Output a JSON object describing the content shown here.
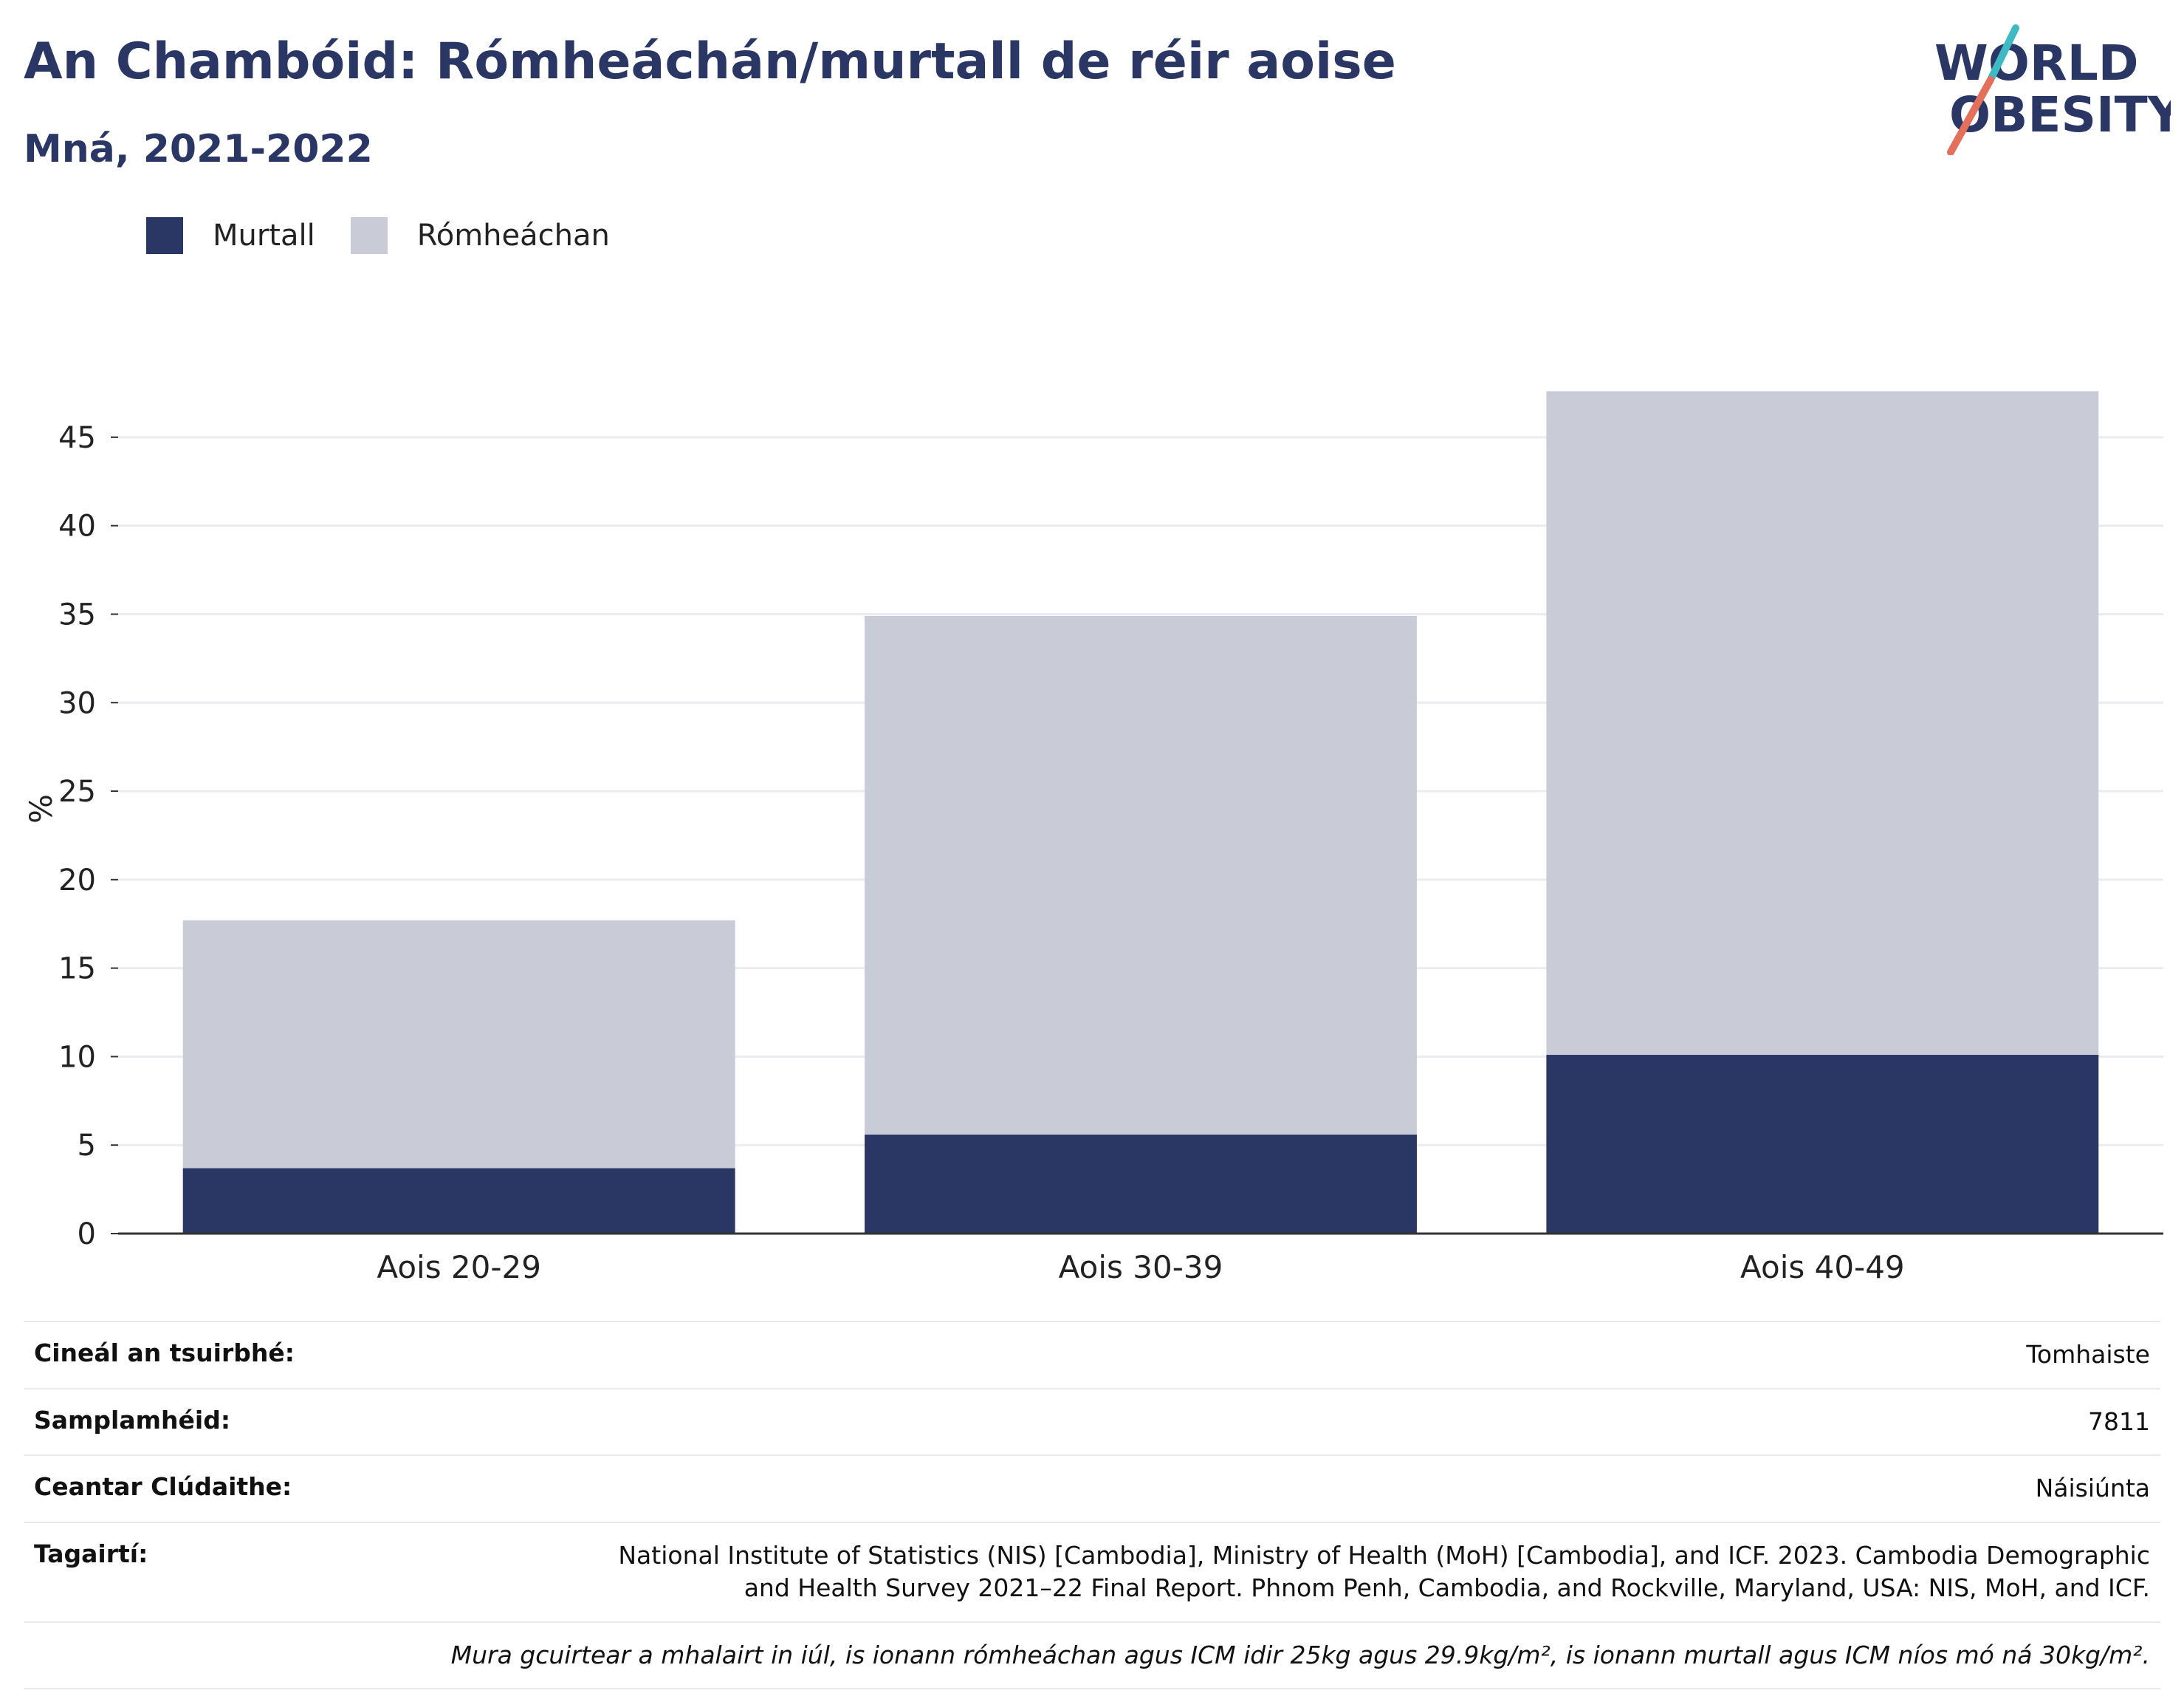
{
  "header": {
    "title": "An Chambóid: Rómheáchán/murtall de réir aoise",
    "subtitle": "Mná, 2021-2022"
  },
  "logo": {
    "line1": "WORLD",
    "line2": "OBESITY"
  },
  "legend": [
    {
      "label": "Murtall",
      "color": "#2a3664"
    },
    {
      "label": "Rómheáchan",
      "color": "#c9ccd7"
    }
  ],
  "chart_data": {
    "type": "bar",
    "stacked": true,
    "categories": [
      "Aois 20-29",
      "Aois 30-39",
      "Aois 40-49"
    ],
    "series": [
      {
        "name": "Murtall",
        "values": [
          3.7,
          5.6,
          10.1
        ],
        "color": "#2a3664"
      },
      {
        "name": "Rómheáchan",
        "values": [
          14.0,
          29.3,
          37.5
        ],
        "color": "#c9ccd7"
      }
    ],
    "ylabel": "%",
    "xlabel": "",
    "ylim": [
      0,
      48
    ],
    "yticks": [
      0,
      5,
      10,
      15,
      20,
      25,
      30,
      35,
      40,
      45
    ],
    "grid": true,
    "legend_position": "top-left"
  },
  "info": {
    "rows": [
      {
        "label": "Cineál an tsuirbhé:",
        "value": "Tomhaiste"
      },
      {
        "label": "Samplamhéid:",
        "value": "7811"
      },
      {
        "label": "Ceantar Clúdaithe:",
        "value": "Náisiúnta"
      },
      {
        "label": "Tagairtí:",
        "value": "National Institute of Statistics (NIS) [Cambodia], Ministry of Health (MoH) [Cambodia], and ICF. 2023. Cambodia Demographic and Health Survey 2021–22 Final Report. Phnom Penh, Cambodia, and Rockville, Maryland, USA: NIS, MoH, and ICF."
      }
    ],
    "note": "Mura gcuirtear a mhalairt in iúl, is ionann rómheáchan agus ICM idir 25kg agus 29.9kg/m², is ionann murtall agus ICM níos mó ná 30kg/m²."
  }
}
